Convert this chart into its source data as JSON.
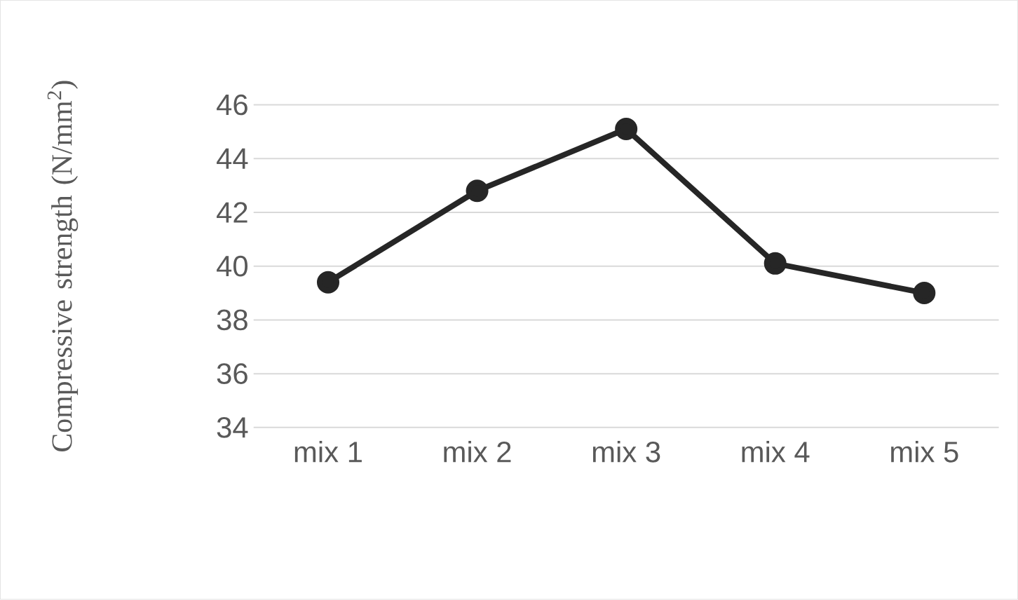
{
  "chart_data": {
    "type": "line",
    "ylabel": "Compressive strength (N/mm$^{2}$)",
    "categories": [
      "mix 1",
      "mix 2",
      "mix 3",
      "mix 4",
      "mix 5"
    ],
    "series": [
      {
        "color": "#262626",
        "values": [
          39.4,
          42.8,
          45.1,
          40.1,
          39.0
        ]
      }
    ],
    "ylim": [
      34,
      46
    ],
    "yticks": [
      34,
      36,
      38,
      40,
      42,
      44,
      46
    ],
    "grid": "y",
    "marker": "circle",
    "line_style": "solid"
  }
}
